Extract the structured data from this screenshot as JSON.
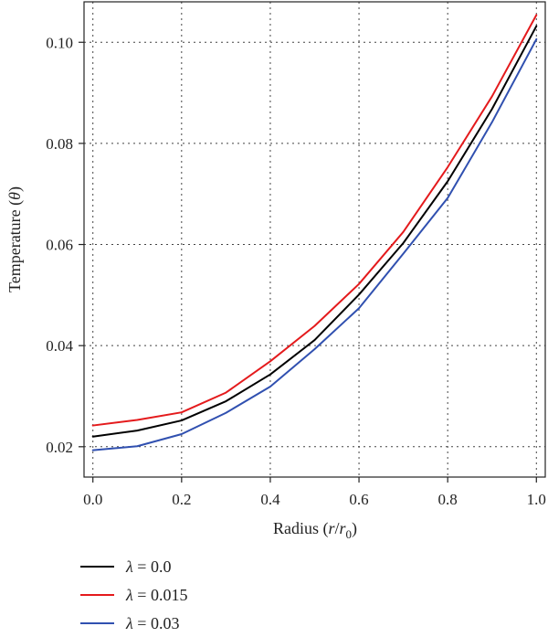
{
  "chart_data": {
    "type": "line",
    "xlabel": "Radius (r/r0)",
    "ylabel": "Temperature (θ)",
    "xlim": [
      -0.02,
      1.02
    ],
    "ylim": [
      0.014,
      0.108
    ],
    "x_ticks": [
      0.0,
      0.2,
      0.4,
      0.6,
      0.8,
      1.0
    ],
    "x_tick_labels": [
      "0.0",
      "0.2",
      "0.4",
      "0.6",
      "0.8",
      "1.0"
    ],
    "y_ticks": [
      0.02,
      0.04,
      0.06,
      0.08,
      0.1
    ],
    "y_tick_labels": [
      "0.02",
      "0.04",
      "0.06",
      "0.08",
      "0.10"
    ],
    "grid": true,
    "legend_position": "below",
    "x": [
      0.0,
      0.1,
      0.2,
      0.3,
      0.4,
      0.5,
      0.6,
      0.7,
      0.8,
      0.9,
      1.0
    ],
    "series": [
      {
        "name": "λ = 0.0",
        "color": "#000000",
        "values": [
          0.022,
          0.0232,
          0.0252,
          0.029,
          0.0343,
          0.0411,
          0.0501,
          0.0603,
          0.0725,
          0.0868,
          0.1032
        ]
      },
      {
        "name": "λ = 0.015",
        "color": "#e41a1c",
        "values": [
          0.0242,
          0.0253,
          0.0268,
          0.0307,
          0.0369,
          0.0439,
          0.0522,
          0.0625,
          0.0753,
          0.0893,
          0.1054
        ]
      },
      {
        "name": "λ = 0.03",
        "color": "#3050b0",
        "values": [
          0.0193,
          0.0201,
          0.0225,
          0.0267,
          0.0319,
          0.0393,
          0.0474,
          0.0582,
          0.0692,
          0.0842,
          0.1006
        ]
      }
    ]
  }
}
